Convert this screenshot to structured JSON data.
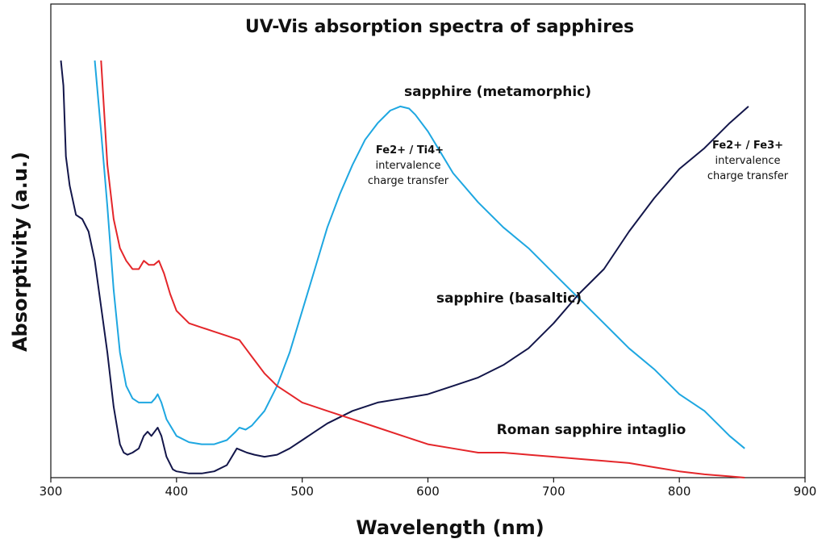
{
  "chart_data": {
    "type": "line",
    "title": "UV-Vis absorption spectra of sapphires",
    "xlabel": "Wavelength (nm)",
    "ylabel": "Absorptivity (a.u.)",
    "xlim": [
      300,
      900
    ],
    "ylim": [
      0,
      1
    ],
    "x_ticks": [
      "300",
      "400",
      "500",
      "600",
      "700",
      "800",
      "900"
    ],
    "grid": false,
    "legend": "none (series labelled directly on the plot)",
    "series": [
      {
        "name": "sapphire (metamorphic)",
        "color": "#1ea7e1",
        "points": [
          [
            335,
            1.0
          ],
          [
            340,
            0.83
          ],
          [
            345,
            0.65
          ],
          [
            350,
            0.45
          ],
          [
            355,
            0.3
          ],
          [
            360,
            0.22
          ],
          [
            365,
            0.19
          ],
          [
            370,
            0.18
          ],
          [
            375,
            0.18
          ],
          [
            380,
            0.18
          ],
          [
            383,
            0.19
          ],
          [
            385,
            0.2
          ],
          [
            388,
            0.18
          ],
          [
            392,
            0.14
          ],
          [
            400,
            0.1
          ],
          [
            410,
            0.085
          ],
          [
            420,
            0.08
          ],
          [
            430,
            0.08
          ],
          [
            440,
            0.09
          ],
          [
            447,
            0.11
          ],
          [
            450,
            0.12
          ],
          [
            455,
            0.115
          ],
          [
            460,
            0.125
          ],
          [
            470,
            0.16
          ],
          [
            480,
            0.22
          ],
          [
            490,
            0.3
          ],
          [
            500,
            0.4
          ],
          [
            510,
            0.5
          ],
          [
            520,
            0.6
          ],
          [
            530,
            0.68
          ],
          [
            540,
            0.75
          ],
          [
            550,
            0.81
          ],
          [
            560,
            0.85
          ],
          [
            570,
            0.88
          ],
          [
            578,
            0.89
          ],
          [
            585,
            0.885
          ],
          [
            590,
            0.87
          ],
          [
            600,
            0.83
          ],
          [
            610,
            0.78
          ],
          [
            620,
            0.73
          ],
          [
            640,
            0.66
          ],
          [
            660,
            0.6
          ],
          [
            680,
            0.55
          ],
          [
            700,
            0.49
          ],
          [
            720,
            0.43
          ],
          [
            740,
            0.37
          ],
          [
            760,
            0.31
          ],
          [
            780,
            0.26
          ],
          [
            800,
            0.2
          ],
          [
            820,
            0.16
          ],
          [
            840,
            0.1
          ],
          [
            852,
            0.07
          ]
        ]
      },
      {
        "name": "sapphire (basaltic)",
        "color": "#13164a",
        "points": [
          [
            308,
            1.0
          ],
          [
            310,
            0.94
          ],
          [
            312,
            0.77
          ],
          [
            315,
            0.7
          ],
          [
            320,
            0.63
          ],
          [
            325,
            0.62
          ],
          [
            330,
            0.59
          ],
          [
            335,
            0.52
          ],
          [
            340,
            0.41
          ],
          [
            345,
            0.3
          ],
          [
            350,
            0.17
          ],
          [
            355,
            0.08
          ],
          [
            358,
            0.06
          ],
          [
            361,
            0.055
          ],
          [
            365,
            0.06
          ],
          [
            370,
            0.07
          ],
          [
            374,
            0.1
          ],
          [
            377,
            0.11
          ],
          [
            380,
            0.1
          ],
          [
            385,
            0.12
          ],
          [
            388,
            0.1
          ],
          [
            392,
            0.05
          ],
          [
            397,
            0.02
          ],
          [
            400,
            0.015
          ],
          [
            410,
            0.01
          ],
          [
            420,
            0.01
          ],
          [
            430,
            0.015
          ],
          [
            440,
            0.03
          ],
          [
            448,
            0.07
          ],
          [
            452,
            0.065
          ],
          [
            456,
            0.06
          ],
          [
            462,
            0.055
          ],
          [
            470,
            0.05
          ],
          [
            480,
            0.055
          ],
          [
            490,
            0.07
          ],
          [
            500,
            0.09
          ],
          [
            510,
            0.11
          ],
          [
            520,
            0.13
          ],
          [
            540,
            0.16
          ],
          [
            560,
            0.18
          ],
          [
            580,
            0.19
          ],
          [
            600,
            0.2
          ],
          [
            620,
            0.22
          ],
          [
            640,
            0.24
          ],
          [
            660,
            0.27
          ],
          [
            680,
            0.31
          ],
          [
            700,
            0.37
          ],
          [
            720,
            0.44
          ],
          [
            740,
            0.5
          ],
          [
            760,
            0.59
          ],
          [
            780,
            0.67
          ],
          [
            800,
            0.74
          ],
          [
            820,
            0.79
          ],
          [
            840,
            0.85
          ],
          [
            855,
            0.89
          ]
        ]
      },
      {
        "name": "Roman sapphire intaglio",
        "color": "#e4262a",
        "points": [
          [
            340,
            1.0
          ],
          [
            345,
            0.75
          ],
          [
            350,
            0.62
          ],
          [
            355,
            0.55
          ],
          [
            360,
            0.52
          ],
          [
            365,
            0.5
          ],
          [
            370,
            0.5
          ],
          [
            374,
            0.52
          ],
          [
            378,
            0.51
          ],
          [
            382,
            0.51
          ],
          [
            386,
            0.52
          ],
          [
            390,
            0.49
          ],
          [
            395,
            0.44
          ],
          [
            400,
            0.4
          ],
          [
            410,
            0.37
          ],
          [
            420,
            0.36
          ],
          [
            430,
            0.35
          ],
          [
            440,
            0.34
          ],
          [
            450,
            0.33
          ],
          [
            455,
            0.31
          ],
          [
            460,
            0.29
          ],
          [
            470,
            0.25
          ],
          [
            480,
            0.22
          ],
          [
            490,
            0.2
          ],
          [
            500,
            0.18
          ],
          [
            520,
            0.16
          ],
          [
            540,
            0.14
          ],
          [
            560,
            0.12
          ],
          [
            580,
            0.1
          ],
          [
            600,
            0.08
          ],
          [
            620,
            0.07
          ],
          [
            640,
            0.06
          ],
          [
            660,
            0.06
          ],
          [
            680,
            0.055
          ],
          [
            700,
            0.05
          ],
          [
            720,
            0.045
          ],
          [
            740,
            0.04
          ],
          [
            760,
            0.035
          ],
          [
            780,
            0.025
          ],
          [
            800,
            0.015
          ],
          [
            820,
            0.008
          ],
          [
            840,
            0.003
          ],
          [
            852,
            0.0
          ]
        ]
      }
    ],
    "annotations": {
      "metamorphic_label": "sapphire (metamorphic)",
      "basaltic_label": "sapphire (basaltic)",
      "roman_label": "Roman sapphire intaglio",
      "fe_ti_header": "Fe2+  / Ti4+",
      "fe_ti_line1": "intervalence",
      "fe_ti_line2": "charge transfer",
      "fe_fe_header": "Fe2+  / Fe3+",
      "fe_fe_line1": "intervalence",
      "fe_fe_line2": "charge transfer"
    }
  }
}
